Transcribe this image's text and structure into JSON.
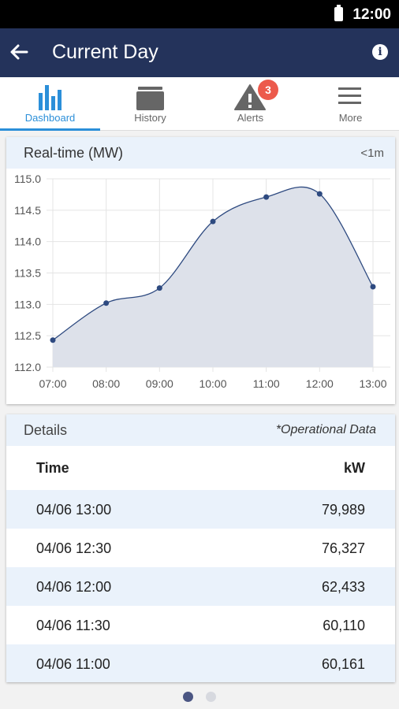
{
  "status_bar": {
    "time": "12:00"
  },
  "app_bar": {
    "title": "Current Day"
  },
  "tabs": [
    {
      "label": "Dashboard",
      "active": true
    },
    {
      "label": "History",
      "active": false
    },
    {
      "label": "Alerts",
      "active": false,
      "badge": "3"
    },
    {
      "label": "More",
      "active": false
    }
  ],
  "realtime": {
    "title": "Real-time (MW)",
    "refresh": "<1m"
  },
  "chart_data": {
    "type": "area",
    "x": [
      "07:00",
      "08:00",
      "09:00",
      "10:00",
      "11:00",
      "12:00",
      "13:00"
    ],
    "values": [
      112.43,
      113.02,
      113.26,
      114.32,
      114.71,
      114.76,
      113.28
    ],
    "ylim": [
      112.0,
      115.0
    ],
    "yticks": [
      "115.0",
      "114.5",
      "114.0",
      "113.5",
      "113.0",
      "112.5",
      "112.0"
    ],
    "grid": true,
    "line_color": "#2e4a80",
    "fill_color": "#dde1ea"
  },
  "details": {
    "title": "Details",
    "note": "*Operational Data",
    "columns": [
      "Time",
      "kW"
    ],
    "rows": [
      [
        "04/06 13:00",
        "79,989"
      ],
      [
        "04/06 12:30",
        "76,327"
      ],
      [
        "04/06 12:00",
        "62,433"
      ],
      [
        "04/06 11:30",
        "60,110"
      ],
      [
        "04/06 11:00",
        "60,161"
      ]
    ]
  },
  "pager": {
    "pages": 2,
    "current": 1
  },
  "colors": {
    "appbar": "#24335b",
    "accent": "#2b8fd9",
    "badge": "#ec5a4c"
  }
}
